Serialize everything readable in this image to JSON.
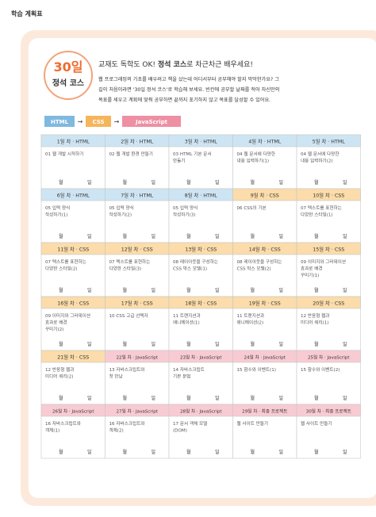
{
  "header": {
    "title": "학습 계획표"
  },
  "badge": {
    "days": "30일",
    "course": "정석 코스"
  },
  "intro": {
    "title_parts": [
      "교재도 독학도 OK! ",
      "정석 코스",
      "로 차근차근 배우세요!"
    ],
    "body_lines": [
      "웹 프로그래밍의 기초를 배우려고 책을 샀는데 어디서부터 공부해야 할지 막막한가요? 그",
      "길이 처음이라면 '30일 정석 코스'로 학습해 보세요. 빈칸에 공부할 날짜를 적어 자신만의",
      "목표를 세우고 계획에 맞춰 공부하면 끝까지 포기하지 않고 목표를 달성할 수 있어요."
    ]
  },
  "flow": {
    "steps": [
      {
        "label": "HTML",
        "color": "#7fb9e0"
      },
      {
        "label": "CSS",
        "color": "#f5b55a"
      },
      {
        "label": "JavaScript",
        "color": "#ee8fa3"
      }
    ],
    "arrow": "→"
  },
  "date_labels": {
    "month": "월",
    "day": "일"
  },
  "cells": [
    {
      "day": "1일 차 · HTML",
      "topic": [
        "01 웹 개발 시작하기"
      ],
      "color": "#cde5f3"
    },
    {
      "day": "2일 차 · HTML",
      "topic": [
        "02 웹 개발 환경 만들기"
      ],
      "color": "#cde5f3"
    },
    {
      "day": "3일 차 · HTML",
      "topic": [
        "03 HTML 기본 문서",
        "만들기"
      ],
      "color": "#cde5f3"
    },
    {
      "day": "4일 차 · HTML",
      "topic": [
        "04 웹 문서에 다양한",
        "내용 입력하기(1)"
      ],
      "color": "#cde5f3"
    },
    {
      "day": "5일 차 · HTML",
      "topic": [
        "04 웹 문서에 다양한",
        "내용 입력하기(2)"
      ],
      "color": "#cde5f3"
    },
    {
      "day": "6일 차 · HTML",
      "topic": [
        "05 입력 양식",
        "작성하기(1)"
      ],
      "color": "#cde5f3"
    },
    {
      "day": "7일 차 · HTML",
      "topic": [
        "05 입력 양식",
        "작성하기(2)"
      ],
      "color": "#cde5f3"
    },
    {
      "day": "8일 차 · HTML",
      "topic": [
        "05 입력 양식",
        "작성하기(3)"
      ],
      "color": "#cde5f3"
    },
    {
      "day": "9일 차 · CSS",
      "topic": [
        "06 CSS의 기본"
      ],
      "color": "#fbdcaa"
    },
    {
      "day": "10일 차 · CSS",
      "topic": [
        "07 텍스트를 표현하는",
        "다양한 스타일(1)"
      ],
      "color": "#fbdcaa"
    },
    {
      "day": "11일 차 · CSS",
      "topic": [
        "07 텍스트를 표현하는",
        "다양한 스타일(2)"
      ],
      "color": "#fbdcaa"
    },
    {
      "day": "12일 차 · CSS",
      "topic": [
        "07 텍스트를 표현하는",
        "다양한 스타일(3)"
      ],
      "color": "#fbdcaa"
    },
    {
      "day": "13일 차 · CSS",
      "topic": [
        "08 레이아웃을 구성하는",
        "CSS 박스 모델(1)"
      ],
      "color": "#fbdcaa"
    },
    {
      "day": "14일 차 · CSS",
      "topic": [
        "08 레이아웃을 구성하는",
        "CSS 박스 모델(2)"
      ],
      "color": "#fbdcaa"
    },
    {
      "day": "15일 차 · CSS",
      "topic": [
        "09 이미지와 그러데이션",
        "효과로 배경",
        "꾸미기(1)"
      ],
      "color": "#fbdcaa"
    },
    {
      "day": "16일 차 · CSS",
      "topic": [
        "09 이미지와 그러데이션",
        "효과로 배경",
        "꾸미기(2)"
      ],
      "color": "#fbdcaa"
    },
    {
      "day": "17일 차 · CSS",
      "topic": [
        "10 CSS 고급 선택자"
      ],
      "color": "#fbdcaa"
    },
    {
      "day": "18일 차 · CSS",
      "topic": [
        "11 트랜지션과",
        "애니메이션(1)"
      ],
      "color": "#fbdcaa"
    },
    {
      "day": "19일 차 · CSS",
      "topic": [
        "11 트랜지션과",
        "애니메이션(2)"
      ],
      "color": "#fbdcaa"
    },
    {
      "day": "20일 차 · CSS",
      "topic": [
        "12 반응형 웹과",
        "미디어 쿼리(1)"
      ],
      "color": "#fbdcaa"
    },
    {
      "day": "21일 차 · CSS",
      "topic": [
        "12 반응형 웹과",
        "미디어 쿼리(2)"
      ],
      "color": "#fbdcaa"
    },
    {
      "day": "22일 차 · JavaScript",
      "topic": [
        "13 자바스크립트와",
        "첫 만남"
      ],
      "color": "#f8cbd3"
    },
    {
      "day": "23일 차 · JavaScript",
      "topic": [
        "14 자바스크립트",
        "기본 문법"
      ],
      "color": "#f8cbd3"
    },
    {
      "day": "24일 차 · JavaScript",
      "topic": [
        "15 함수와 이벤트(1)"
      ],
      "color": "#f8cbd3"
    },
    {
      "day": "25일 차 · JavaScript",
      "topic": [
        "15 함수와 이벤트(2)"
      ],
      "color": "#f8cbd3"
    },
    {
      "day": "26일 차 · JavaScript",
      "topic": [
        "16 자바스크립트와",
        "객체(1)"
      ],
      "color": "#f8cbd3"
    },
    {
      "day": "27일 차 · JavaScript",
      "topic": [
        "16 자바스크립트와",
        "객체(2)"
      ],
      "color": "#f8cbd3"
    },
    {
      "day": "28일 차 · JavaScript",
      "topic": [
        "17 문서 객체 모델",
        "(DOM)"
      ],
      "color": "#f8cbd3"
    },
    {
      "day": "29일 차 · 최종 프로젝트",
      "topic": [
        "웹 사이트 만들기"
      ],
      "color": "#f8cbd3"
    },
    {
      "day": "30일 차 · 최종 프로젝트",
      "topic": [
        "웹 사이트 만들기"
      ],
      "color": "#f8cbd3"
    }
  ]
}
